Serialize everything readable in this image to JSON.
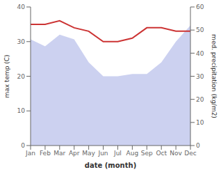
{
  "chart_data": {
    "type": "line",
    "categories": [
      "Jan",
      "Feb",
      "Mar",
      "Apr",
      "May",
      "Jun",
      "Jul",
      "Aug",
      "Sep",
      "Oct",
      "Nov",
      "Dec"
    ],
    "series": [
      {
        "type": "area",
        "axis": "y2",
        "color": "#b0b8e8",
        "values": [
          46,
          43,
          48,
          46,
          36,
          30,
          30,
          31,
          31,
          36,
          45,
          52
        ]
      },
      {
        "type": "line",
        "axis": "y",
        "color": "#cc3333",
        "values": [
          35.0,
          35.0,
          36.0,
          34.0,
          33.0,
          30.0,
          30.0,
          31.0,
          34.0,
          34.0,
          33.0,
          33.0
        ]
      }
    ],
    "xlabel": "date (month)",
    "ylabel": "max temp (C)",
    "y2label": "med. precipitation (kg/m2)",
    "ylim": [
      0,
      40
    ],
    "yticks": [
      0,
      10,
      20,
      30,
      40
    ],
    "y2lim": [
      0,
      60
    ],
    "y2ticks": [
      0,
      10,
      20,
      30,
      40,
      50,
      60
    ],
    "grid": false
  }
}
